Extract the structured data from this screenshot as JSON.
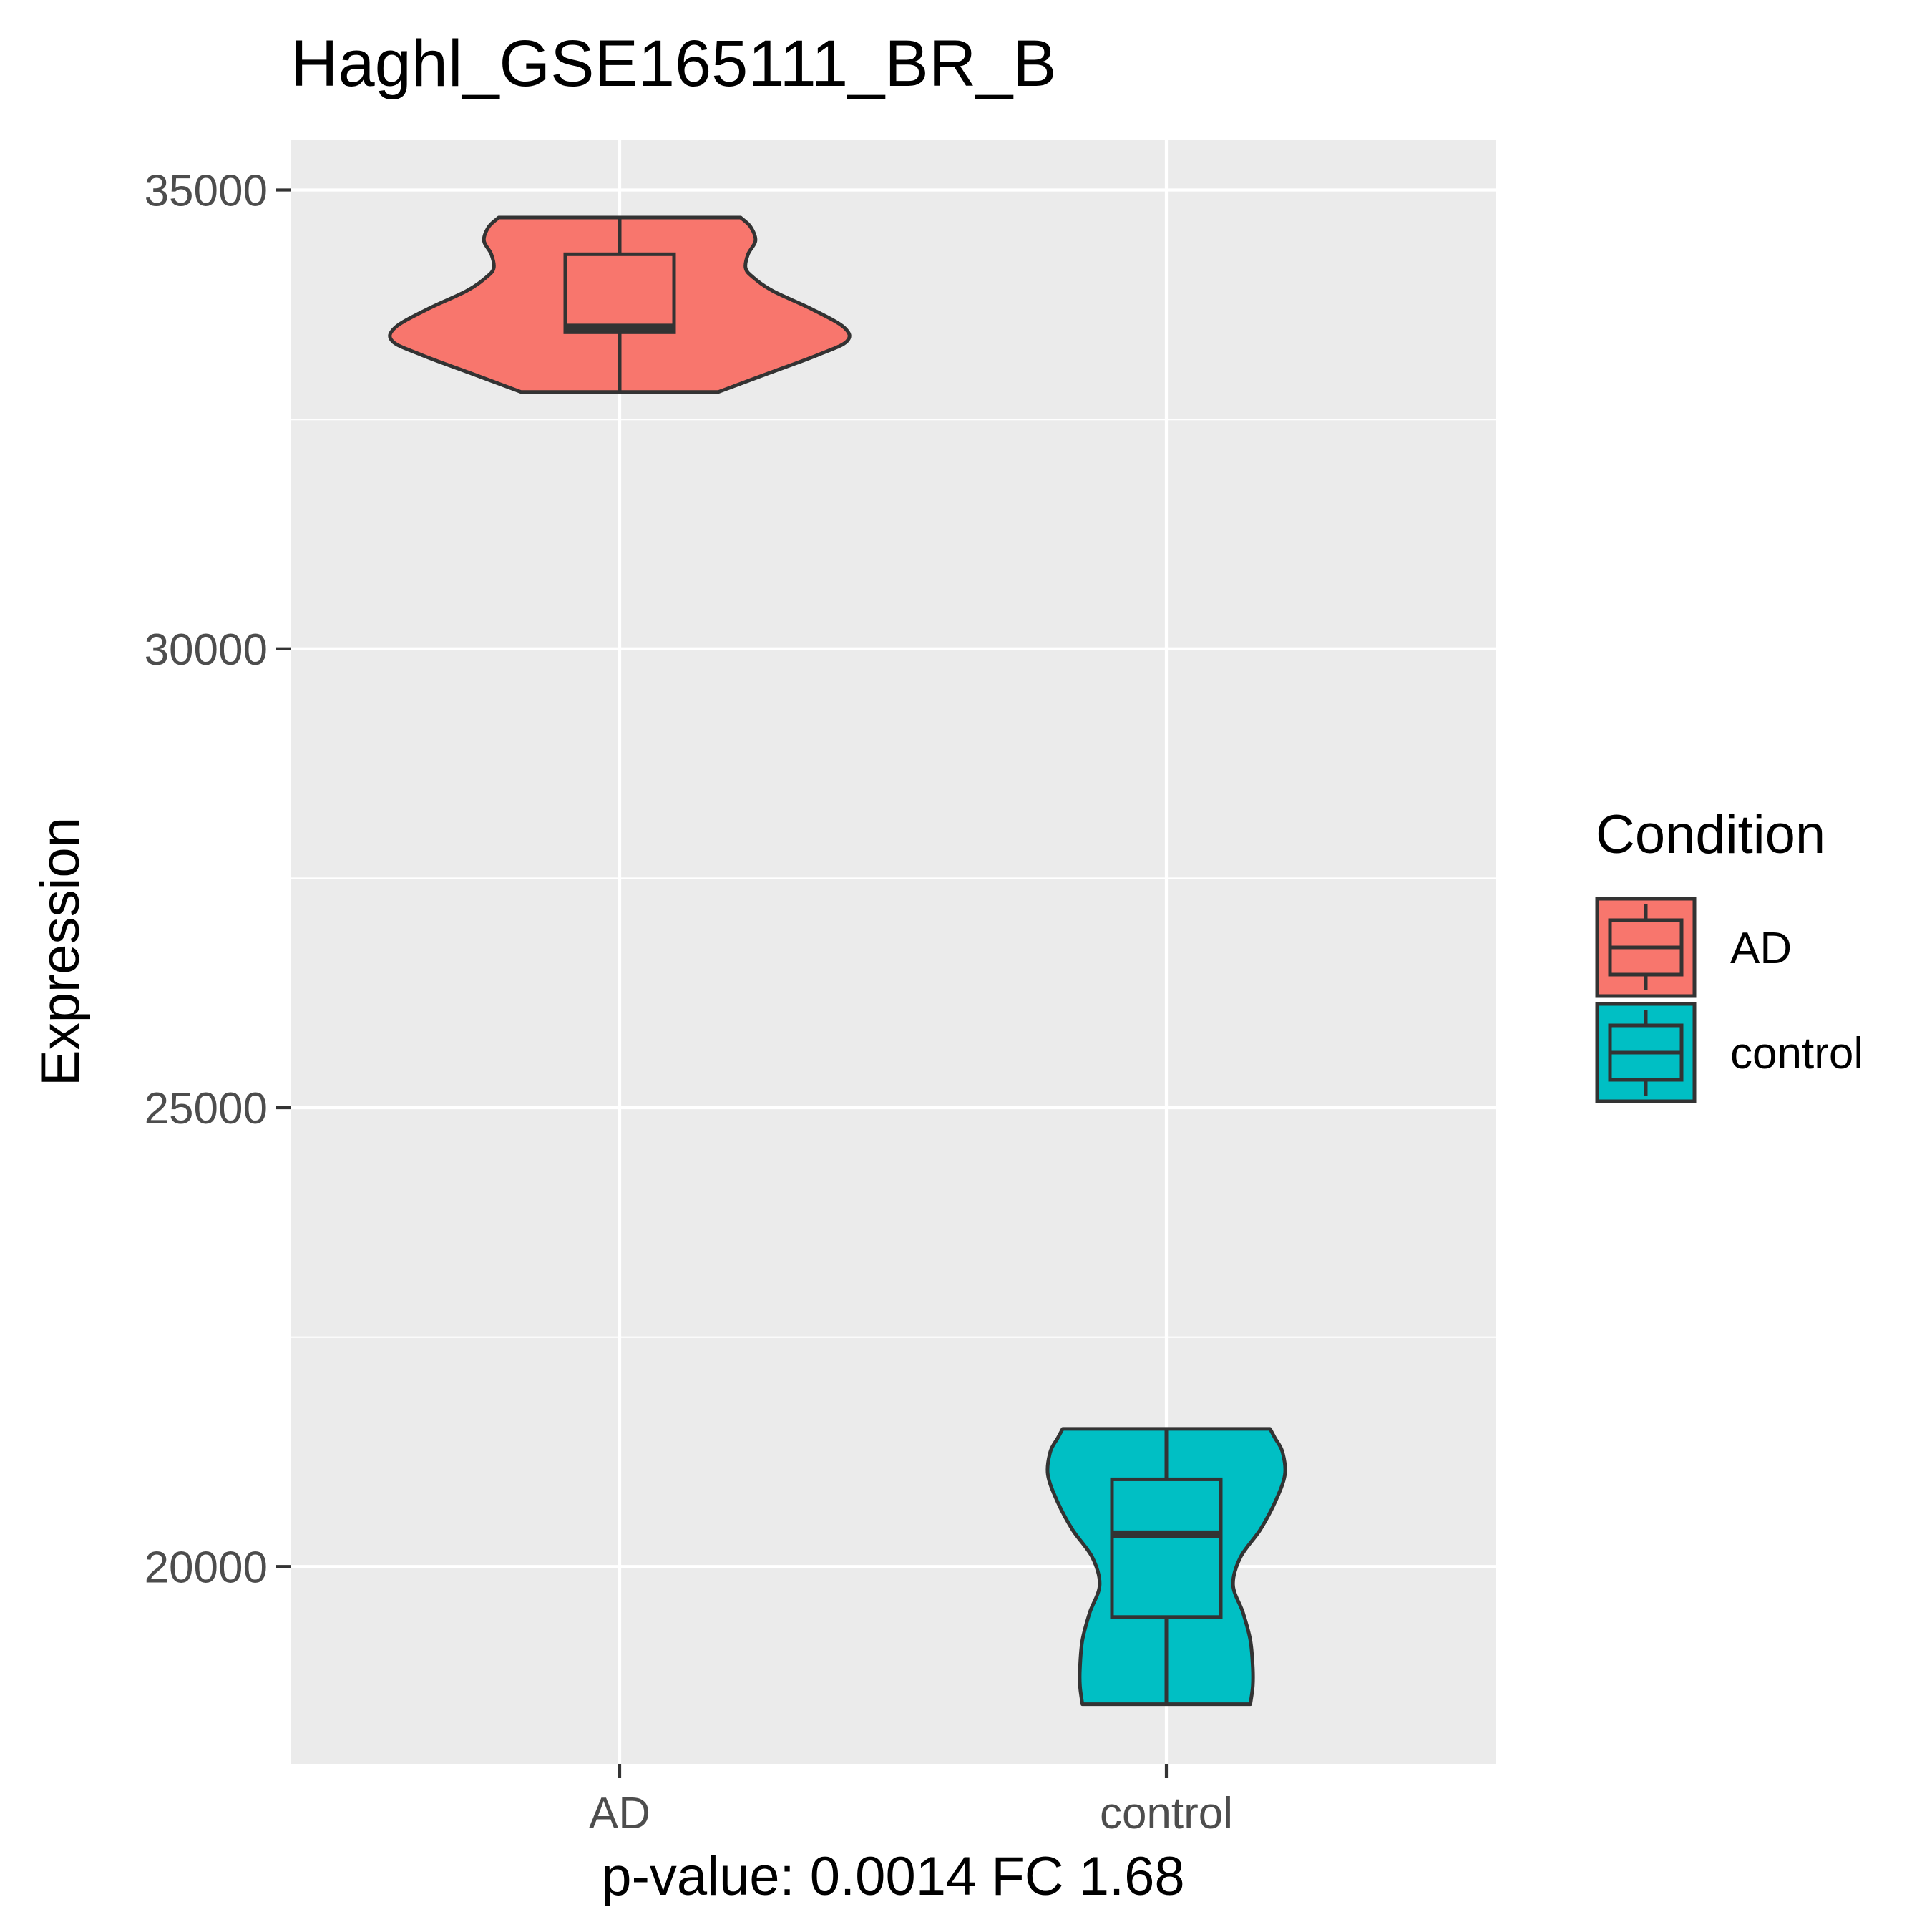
{
  "chart_data": {
    "type": "violin",
    "title": "Haghl_GSE165111_BR_B",
    "xlabel": "p-value: 0.0014 FC 1.68",
    "ylabel": "Expression",
    "categories": [
      "AD",
      "control"
    ],
    "ylim": [
      17850,
      35550
    ],
    "y_ticks": [
      20000,
      25000,
      30000,
      35000
    ],
    "y_tick_labels": [
      "20000",
      "25000",
      "30000",
      "35000"
    ],
    "grid": true,
    "legend": {
      "title": "Condition",
      "position": "right",
      "entries": [
        "AD",
        "control"
      ]
    },
    "colors": {
      "AD": "#F8766D",
      "control": "#00BFC4",
      "panel_background": "#EBEBEB",
      "outline": "#333333"
    },
    "series": [
      {
        "category": "AD",
        "box": {
          "min": 32800,
          "q1": 33450,
          "median": 33500,
          "q3": 34300,
          "max": 34700
        },
        "density": [
          {
            "y": 32800,
            "w": 0.4
          },
          {
            "y": 33000,
            "w": 0.6
          },
          {
            "y": 33200,
            "w": 0.8
          },
          {
            "y": 33350,
            "w": 0.92
          },
          {
            "y": 33500,
            "w": 0.91
          },
          {
            "y": 33700,
            "w": 0.78
          },
          {
            "y": 33900,
            "w": 0.62
          },
          {
            "y": 34050,
            "w": 0.54
          },
          {
            "y": 34150,
            "w": 0.51
          },
          {
            "y": 34300,
            "w": 0.52
          },
          {
            "y": 34450,
            "w": 0.55
          },
          {
            "y": 34600,
            "w": 0.53
          },
          {
            "y": 34700,
            "w": 0.49
          }
        ]
      },
      {
        "category": "control",
        "box": {
          "min": 18500,
          "q1": 19450,
          "median": 20350,
          "q3": 20950,
          "max": 21500
        },
        "density": [
          {
            "y": 18500,
            "w": 0.34
          },
          {
            "y": 18700,
            "w": 0.35
          },
          {
            "y": 18900,
            "w": 0.35
          },
          {
            "y": 19200,
            "w": 0.34
          },
          {
            "y": 19500,
            "w": 0.31
          },
          {
            "y": 19800,
            "w": 0.27
          },
          {
            "y": 20100,
            "w": 0.3
          },
          {
            "y": 20400,
            "w": 0.38
          },
          {
            "y": 20700,
            "w": 0.44
          },
          {
            "y": 21000,
            "w": 0.48
          },
          {
            "y": 21250,
            "w": 0.47
          },
          {
            "y": 21400,
            "w": 0.44
          },
          {
            "y": 21500,
            "w": 0.42
          }
        ]
      }
    ]
  }
}
